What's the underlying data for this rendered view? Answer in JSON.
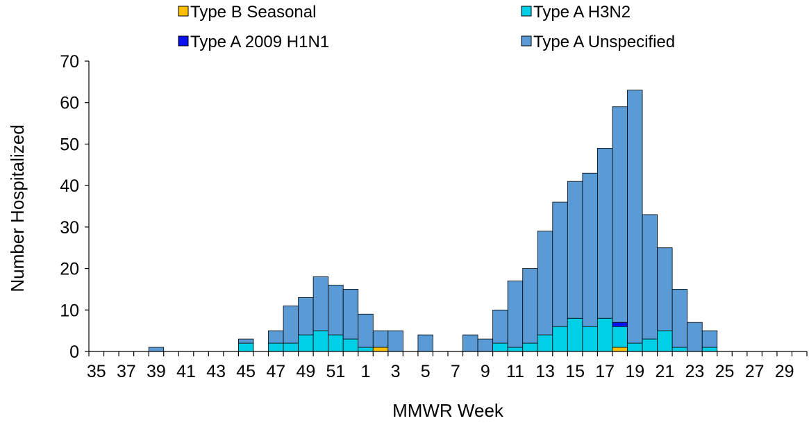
{
  "chart_data": {
    "type": "bar",
    "stacked": true,
    "xlabel": "MMWR Week",
    "ylabel": "Number Hospitalized",
    "ylim": [
      0,
      70
    ],
    "yticks": [
      0,
      10,
      20,
      30,
      40,
      50,
      60,
      70
    ],
    "grid": false,
    "legend_position": "top",
    "weeks": [
      35,
      36,
      37,
      38,
      39,
      40,
      41,
      42,
      43,
      44,
      45,
      46,
      47,
      48,
      49,
      50,
      51,
      52,
      1,
      2,
      3,
      4,
      5,
      6,
      7,
      8,
      9,
      10,
      11,
      12,
      13,
      14,
      15,
      16,
      17,
      18,
      19,
      20,
      21,
      22,
      23,
      24,
      25,
      26,
      27,
      28,
      29,
      30
    ],
    "tick_labels": [
      "35",
      "",
      "37",
      "",
      "39",
      "",
      "41",
      "",
      "43",
      "",
      "45",
      "",
      "47",
      "",
      "49",
      "",
      "51",
      "",
      "1",
      "",
      "3",
      "",
      "5",
      "",
      "7",
      "",
      "9",
      "",
      "11",
      "",
      "13",
      "",
      "15",
      "",
      "17",
      "",
      "19",
      "",
      "21",
      "",
      "23",
      "",
      "25",
      "",
      "27",
      "",
      "29",
      ""
    ],
    "series": [
      {
        "name": "Type B Seasonal",
        "color": "#FFC000",
        "values": [
          0,
          0,
          0,
          0,
          0,
          0,
          0,
          0,
          0,
          0,
          0,
          0,
          0,
          0,
          0,
          0,
          0,
          0,
          0,
          1,
          0,
          0,
          0,
          0,
          0,
          0,
          0,
          0,
          0,
          0,
          0,
          0,
          0,
          0,
          0,
          1,
          0,
          0,
          0,
          0,
          0,
          0,
          0,
          0,
          0,
          0,
          0,
          0
        ]
      },
      {
        "name": "Type A H3N2",
        "color": "#00D0E6",
        "values": [
          0,
          0,
          0,
          0,
          0,
          0,
          0,
          0,
          0,
          0,
          2,
          0,
          2,
          2,
          4,
          5,
          4,
          3,
          1,
          0,
          0,
          0,
          0,
          0,
          0,
          0,
          0,
          2,
          1,
          2,
          4,
          6,
          8,
          6,
          8,
          5,
          2,
          3,
          5,
          1,
          0,
          1,
          0,
          0,
          0,
          0,
          0,
          0
        ]
      },
      {
        "name": "Type A 2009 H1N1",
        "color": "#0A10F0",
        "values": [
          0,
          0,
          0,
          0,
          0,
          0,
          0,
          0,
          0,
          0,
          0,
          0,
          0,
          0,
          0,
          0,
          0,
          0,
          0,
          0,
          0,
          0,
          0,
          0,
          0,
          0,
          0,
          0,
          0,
          0,
          0,
          0,
          0,
          0,
          0,
          1,
          0,
          0,
          0,
          0,
          0,
          0,
          0,
          0,
          0,
          0,
          0,
          0
        ]
      },
      {
        "name": "Type A Unspecified",
        "color": "#5B9BD5",
        "values": [
          0,
          0,
          0,
          0,
          1,
          0,
          0,
          0,
          0,
          0,
          1,
          0,
          3,
          9,
          9,
          13,
          12,
          12,
          8,
          4,
          5,
          0,
          4,
          0,
          0,
          4,
          3,
          8,
          16,
          18,
          25,
          30,
          33,
          37,
          41,
          52,
          61,
          30,
          20,
          14,
          7,
          4,
          0,
          0,
          0,
          0,
          0,
          0
        ]
      }
    ]
  }
}
